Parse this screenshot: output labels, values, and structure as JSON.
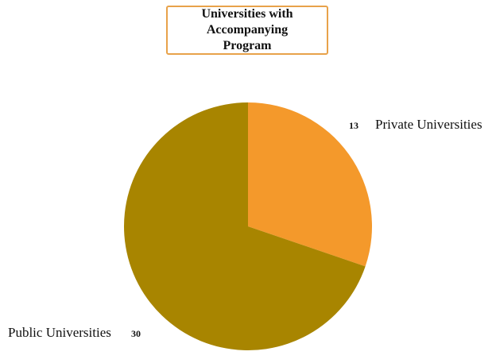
{
  "chart_data": {
    "type": "pie",
    "title": "Universities with Accompanying Program",
    "categories": [
      "Private Universities",
      "Public Universities"
    ],
    "values": [
      13,
      30
    ],
    "colors": [
      "#f4992b",
      "#a88500"
    ]
  }
}
